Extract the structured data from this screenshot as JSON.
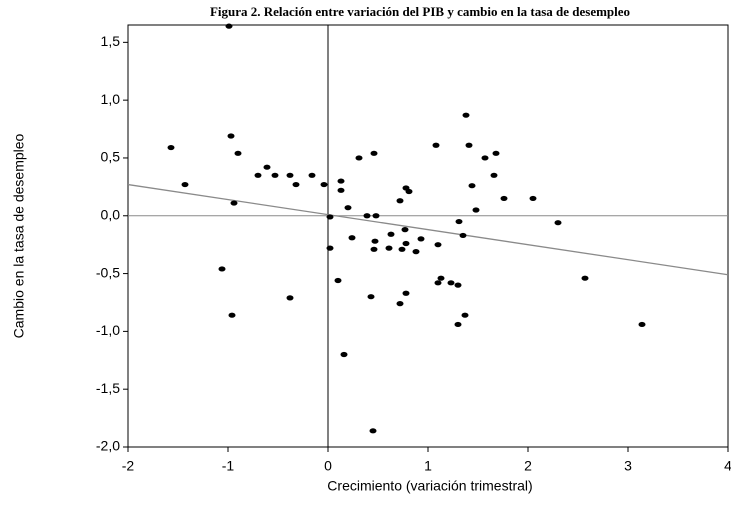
{
  "chart_data": {
    "type": "scatter",
    "title": "Figura 2. Relación entre variación del PIB y cambio en la tasa de desempleo",
    "x_label": "Crecimiento (variación trimestral)",
    "y_label": "Cambio en la tasa de desempleo",
    "color": "#000000",
    "x": [
      -1.57,
      -1.43,
      -0.94,
      -1.06,
      -0.99,
      -0.97,
      -0.9,
      -0.96,
      -0.38,
      -0.7,
      -0.61,
      -0.53,
      -0.38,
      -0.32,
      -0.16,
      -0.04,
      0.02,
      0.02,
      0.13,
      0.13,
      0.2,
      0.24,
      0.1,
      0.16,
      0.39,
      0.31,
      0.46,
      0.48,
      0.47,
      0.46,
      0.43,
      0.45,
      0.63,
      0.61,
      0.77,
      0.78,
      0.74,
      0.88,
      0.93,
      0.78,
      0.81,
      0.72,
      0.72,
      0.78,
      1.08,
      1.1,
      1.1,
      1.13,
      1.23,
      1.3,
      1.3,
      1.31,
      1.35,
      1.37,
      1.38,
      1.41,
      1.44,
      1.48,
      1.57,
      1.68,
      1.66,
      1.76,
      2.05,
      2.3,
      2.57,
      3.14
    ],
    "y": [
      0.59,
      0.27,
      0.11,
      -0.46,
      1.64,
      0.69,
      0.54,
      -0.86,
      -0.71,
      0.35,
      0.42,
      0.35,
      0.35,
      0.27,
      0.35,
      0.27,
      -0.01,
      -0.28,
      0.3,
      0.22,
      0.07,
      -0.19,
      -0.56,
      -1.2,
      0.0,
      0.5,
      0.54,
      0.0,
      -0.22,
      -0.29,
      -0.7,
      -1.86,
      -0.16,
      -0.28,
      -0.12,
      -0.24,
      -0.29,
      -0.31,
      -0.2,
      0.24,
      0.21,
      0.13,
      -0.76,
      -0.67,
      0.61,
      -0.25,
      -0.58,
      -0.54,
      -0.58,
      -0.94,
      -0.6,
      -0.05,
      -0.17,
      -0.86,
      0.87,
      0.61,
      0.26,
      0.05,
      0.5,
      0.54,
      0.35,
      0.15,
      0.15,
      -0.06,
      -0.54,
      -0.94
    ],
    "fit_line": {
      "x": [
        -2,
        4
      ],
      "y": [
        0.27,
        -0.51
      ],
      "color": "#8a8a8a"
    },
    "reference_lines": {
      "x": 0,
      "y": 0
    },
    "xlim": [
      -2,
      4
    ],
    "xticks": [
      -2,
      -1,
      0,
      1,
      2,
      3,
      4
    ],
    "ylim": [
      -2,
      1.65
    ],
    "yticks": [
      {
        "value": -2,
        "label": "-2,0"
      },
      {
        "value": -1.5,
        "label": "-1,5"
      },
      {
        "value": -1,
        "label": "-1,0"
      },
      {
        "value": -0.5,
        "label": "-0,5"
      },
      {
        "value": 0,
        "label": "0,0"
      },
      {
        "value": 0.5,
        "label": "0,5"
      },
      {
        "value": 1,
        "label": "1,0"
      },
      {
        "value": 1.5,
        "label": "1,5"
      }
    ]
  }
}
